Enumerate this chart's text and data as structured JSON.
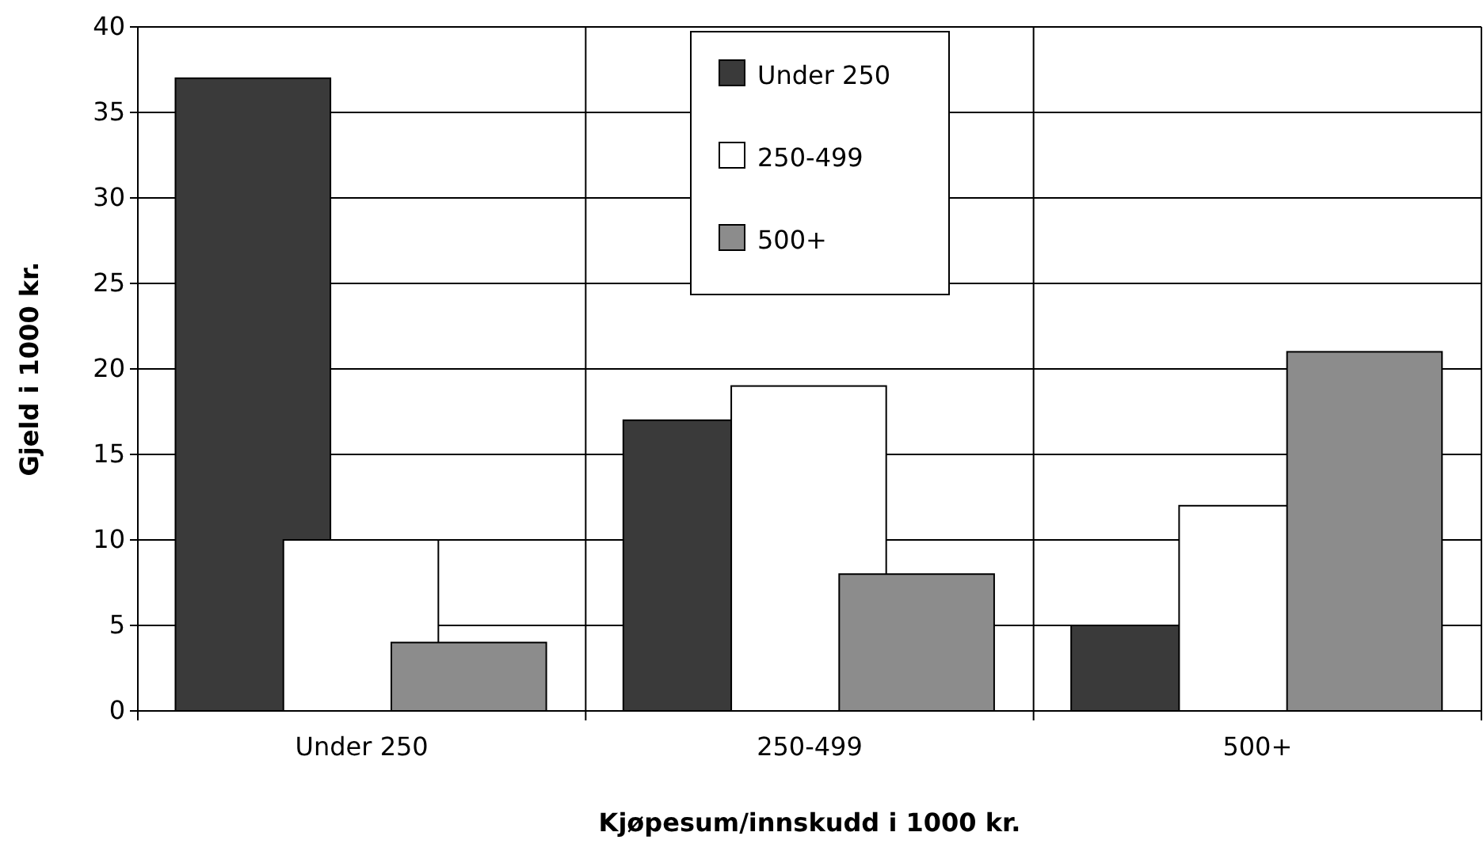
{
  "chart_data": {
    "type": "bar",
    "xlabel": "Kjøpesum/innskudd i 1000 kr.",
    "ylabel": "Gjeld i 1000 kr.",
    "categories": [
      "Under 250",
      "250-499",
      "500+"
    ],
    "series": [
      {
        "name": "Under 250",
        "color": "#3a3a3a",
        "values": [
          37,
          17,
          5
        ]
      },
      {
        "name": "250-499",
        "color": "#ffffff",
        "values": [
          10,
          19,
          12
        ]
      },
      {
        "name": "500+",
        "color": "#8c8c8c",
        "values": [
          4,
          8,
          21
        ]
      }
    ],
    "ylim": [
      0,
      40
    ],
    "yticks": [
      0,
      5,
      10,
      15,
      20,
      25,
      30,
      35,
      40
    ],
    "grid": true,
    "legend": "top"
  }
}
